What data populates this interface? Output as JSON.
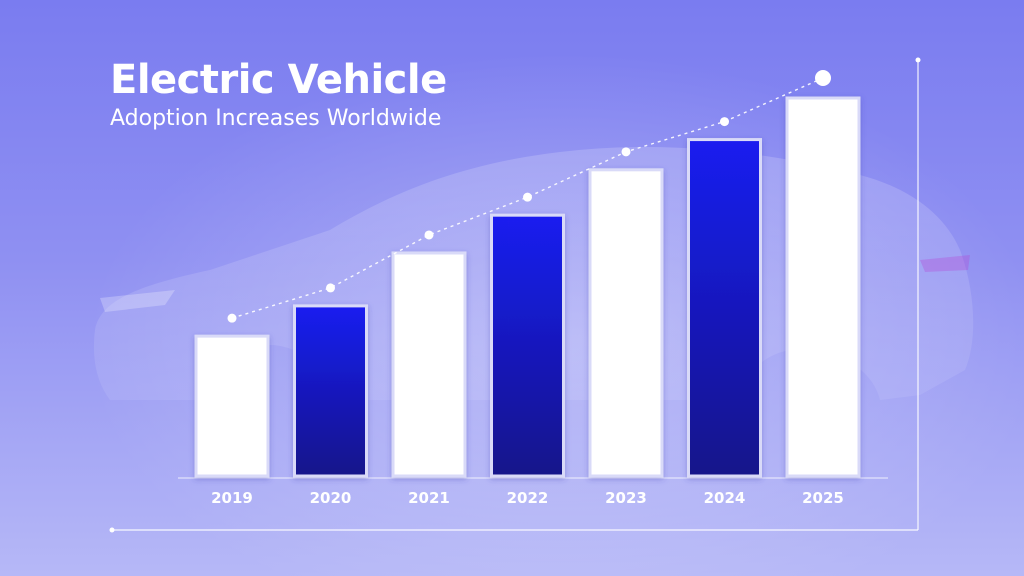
{
  "title": "Electric Vehicle",
  "subtitle": "Adoption Increases Worldwide",
  "colors": {
    "background_top": "#7a7cf0",
    "background_bottom": "#b6b8f7",
    "bar_white": "#ffffff",
    "bar_blue_top": "#1a1ff0",
    "bar_blue_bottom": "#12128a",
    "axis": "#ffffff",
    "trend_line": "#ffffff"
  },
  "chart_data": {
    "type": "bar",
    "categories": [
      "2019",
      "2020",
      "2021",
      "2022",
      "2023",
      "2024",
      "2025"
    ],
    "values": [
      37,
      45,
      59,
      69,
      81,
      89,
      100
    ],
    "bar_colors": [
      "white",
      "blue",
      "white",
      "blue",
      "white",
      "blue",
      "white"
    ],
    "ylim": [
      0,
      100
    ],
    "xlabel": "",
    "ylabel": "",
    "grid": false,
    "legend": "none",
    "trend_line": {
      "style": "dotted",
      "markers": true
    }
  }
}
